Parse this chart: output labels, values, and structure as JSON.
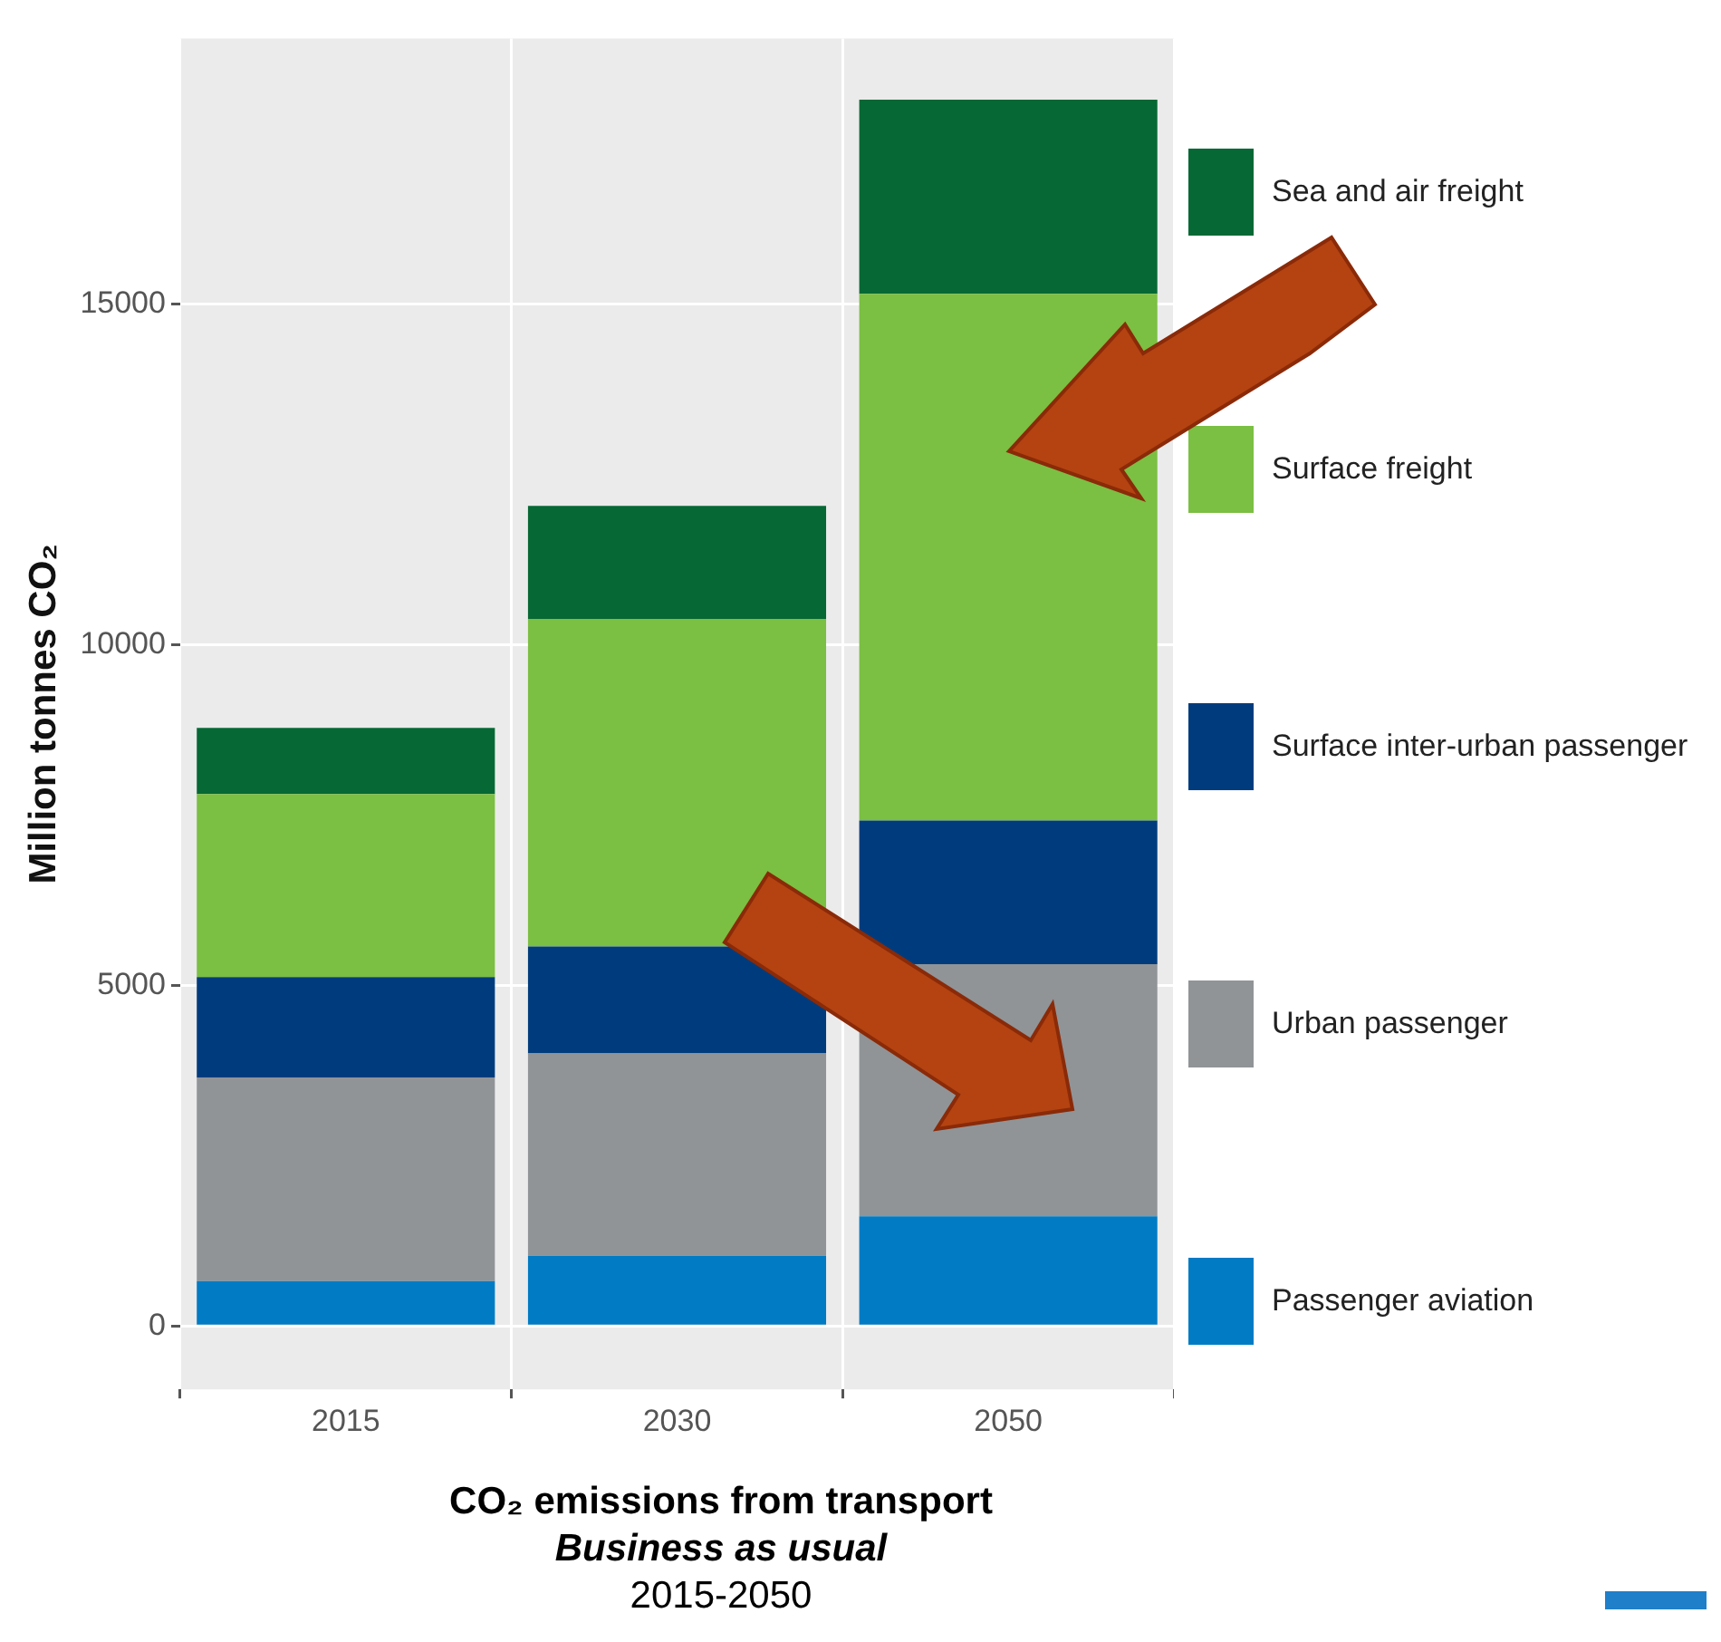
{
  "chart_data": {
    "type": "bar",
    "title": "CO₂ emissions from transport",
    "subtitle": "Business as usual",
    "annotations": [
      "2015-2050"
    ],
    "ylabel": "Million tonnes CO₂",
    "categories": [
      "2015",
      "2030",
      "2050"
    ],
    "stacked": true,
    "ylim": [
      -930,
      18900
    ],
    "yticks": [
      0,
      5000,
      10000,
      15000
    ],
    "grid": true,
    "legend": "right",
    "series": [
      {
        "name": "Passenger aviation",
        "color": "#007bc4",
        "values": [
          660,
          1030,
          1610
        ]
      },
      {
        "name": "Urban passenger",
        "color": "#909497",
        "values": [
          2990,
          2970,
          3700
        ]
      },
      {
        "name": "Surface inter-urban passenger",
        "color": "#003c7d",
        "values": [
          1470,
          1570,
          2110
        ]
      },
      {
        "name": "Surface freight",
        "color": "#7bbf43",
        "values": [
          2690,
          4810,
          7730
        ]
      },
      {
        "name": "Sea and air freight",
        "color": "#066834",
        "values": [
          970,
          1660,
          2850
        ]
      }
    ]
  }
}
